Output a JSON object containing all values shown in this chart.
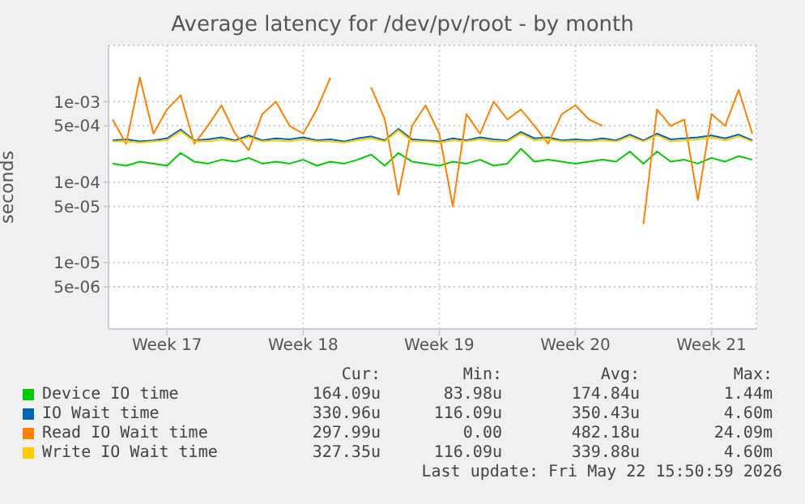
{
  "chart_data": {
    "type": "line",
    "title": "Average latency for /dev/pv/root - by month",
    "ylabel": "seconds",
    "log": "y",
    "grid": true,
    "legend": "bottom",
    "marker": "none",
    "line_style": "solid",
    "categories": [
      null,
      null,
      null,
      null,
      "Week 17",
      null,
      null,
      null,
      null,
      null,
      null,
      null,
      null,
      null,
      "Week 18",
      null,
      null,
      null,
      null,
      null,
      null,
      null,
      null,
      null,
      "Week 19",
      null,
      null,
      null,
      null,
      null,
      null,
      null,
      null,
      null,
      "Week 20",
      null,
      null,
      null,
      null,
      null,
      null,
      null,
      null,
      null,
      "Week 21",
      null,
      null,
      null
    ],
    "ylim": [
      1.5e-06,
      0.005
    ],
    "yticks": [
      {
        "value": 5e-06,
        "label": "5e-06"
      },
      {
        "value": 1e-05,
        "label": "1e-05"
      },
      {
        "value": 5e-05,
        "label": "5e-05"
      },
      {
        "value": 0.0001,
        "label": "1e-04"
      },
      {
        "value": 0.0005,
        "label": "5e-04"
      },
      {
        "value": 0.001,
        "label": "1e-03"
      }
    ],
    "series": [
      {
        "name": "Device IO time",
        "color": "#00cc00",
        "values": [
          0.00017,
          0.00016,
          0.00018,
          0.00017,
          0.00016,
          0.00023,
          0.00018,
          0.00017,
          0.00019,
          0.00018,
          0.0002,
          0.00017,
          0.00018,
          0.00017,
          0.00019,
          0.00016,
          0.00018,
          0.00017,
          0.00019,
          0.00022,
          0.00016,
          0.00023,
          0.00018,
          0.00017,
          0.00016,
          0.00018,
          0.00017,
          0.00019,
          0.00016,
          0.00017,
          0.00026,
          0.00018,
          0.00019,
          0.00018,
          0.00017,
          0.00018,
          0.00019,
          0.00018,
          0.00024,
          0.00017,
          0.00024,
          0.00018,
          0.00019,
          0.00017,
          0.0002,
          0.00018,
          0.00021,
          0.00019
        ]
      },
      {
        "name": "IO Wait time",
        "color": "#0066b3",
        "values": [
          0.00033,
          0.00034,
          0.00032,
          0.00033,
          0.00035,
          0.00045,
          0.00033,
          0.00034,
          0.00036,
          0.00033,
          0.00038,
          0.00033,
          0.00035,
          0.00034,
          0.00036,
          0.00033,
          0.00034,
          0.00032,
          0.00035,
          0.00037,
          0.00033,
          0.00046,
          0.00034,
          0.00033,
          0.00032,
          0.00035,
          0.00033,
          0.00036,
          0.00034,
          0.00033,
          0.00042,
          0.00035,
          0.00036,
          0.00033,
          0.00034,
          0.00033,
          0.00035,
          0.00033,
          0.00039,
          0.00033,
          0.0004,
          0.00034,
          0.00035,
          0.00036,
          0.00038,
          0.00035,
          0.00039,
          0.00033
        ]
      },
      {
        "name": "Read IO Wait time",
        "color": "#ff8000",
        "values": [
          0.0006,
          0.0003,
          0.002,
          0.0004,
          0.0008,
          0.0012,
          0.0003,
          0.0005,
          0.0009,
          0.0004,
          0.00025,
          0.0007,
          0.001,
          0.0005,
          0.0004,
          0.0008,
          0.002,
          null,
          null,
          0.0015,
          0.0006,
          7e-05,
          0.0005,
          0.0009,
          0.0004,
          5e-05,
          0.0007,
          0.0004,
          0.001,
          0.0006,
          0.0008,
          0.0005,
          0.0003,
          0.0007,
          0.0009,
          0.0006,
          0.0005,
          null,
          null,
          3e-05,
          0.0008,
          0.0005,
          0.0006,
          6e-05,
          0.0007,
          0.0005,
          0.0014,
          0.0004
        ]
      },
      {
        "name": "Write IO Wait time",
        "color": "#ffcc00",
        "values": [
          0.00032,
          0.00032,
          0.00031,
          0.00032,
          0.00033,
          0.00043,
          0.00032,
          0.00032,
          0.00034,
          0.00032,
          0.00036,
          0.00032,
          0.00033,
          0.00032,
          0.00034,
          0.00032,
          0.00032,
          0.00031,
          0.00033,
          0.00035,
          0.00032,
          0.00044,
          0.00032,
          0.00032,
          0.00031,
          0.00033,
          0.00032,
          0.00034,
          0.00032,
          0.00032,
          0.0004,
          0.00033,
          0.00034,
          0.00032,
          0.00032,
          0.00032,
          0.00033,
          0.00032,
          0.00037,
          0.00032,
          0.00038,
          0.00032,
          0.00033,
          0.00034,
          0.00036,
          0.00033,
          0.00037,
          0.00032
        ]
      }
    ],
    "annotations": [
      "Cur:",
      "Min:",
      "Avg:",
      "Max:",
      "164.09u",
      "83.98u",
      "174.84u",
      "1.44m",
      "330.96u",
      "116.09u",
      "350.43u",
      "4.60m",
      "297.99u",
      "0.00",
      "482.18u",
      "24.09m",
      "327.35u",
      "116.09u",
      "339.88u",
      "4.60m",
      "Last update: Fri May 22 15:50:59 2026"
    ]
  }
}
